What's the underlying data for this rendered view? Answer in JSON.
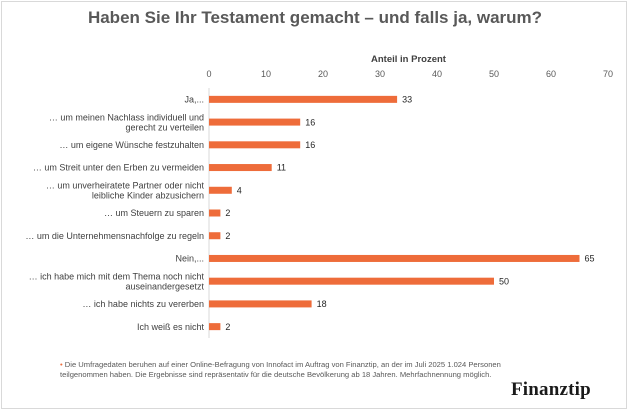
{
  "chart_data": {
    "type": "bar",
    "orientation": "horizontal",
    "title": "Haben Sie Ihr Testament gemacht – und falls ja, warum?",
    "xlabel": "Anteil in Prozent",
    "ylabel": "",
    "xlim": [
      0,
      70
    ],
    "xticks": [
      0,
      10,
      20,
      30,
      40,
      50,
      60,
      70
    ],
    "grid": false,
    "bar_color": "#ee6c3a",
    "categories": [
      [
        "Ja,..."
      ],
      [
        "… um meinen Nachlass individuell und",
        "gerecht zu verteilen"
      ],
      [
        "… um eigene Wünsche festzuhalten"
      ],
      [
        "… um Streit unter den Erben zu vermeiden"
      ],
      [
        "… um unverheiratete Partner oder nicht",
        "leibliche Kinder abzusichern"
      ],
      [
        "… um Steuern zu sparen"
      ],
      [
        "… um die Unternehmensnachfolge zu regeln"
      ],
      [
        "Nein,..."
      ],
      [
        "… ich habe mich mit dem Thema noch nicht",
        "auseinandergesetzt"
      ],
      [
        "… ich habe nichts zu vererben"
      ],
      [
        "Ich weiß es nicht"
      ]
    ],
    "values": [
      33,
      16,
      16,
      11,
      4,
      2,
      2,
      65,
      50,
      18,
      2
    ]
  },
  "footnote": {
    "bullet": "•",
    "text": "Die Umfragedaten beruhen auf einer Online-Befragung von Innofact im Auftrag von Finanztip, an der im Juli 2025 1.024 Personen teilgenommen haben. Die Ergebnisse sind repräsentativ für die deutsche Bevölkerung ab 18 Jahren. Mehrfachnennung möglich."
  },
  "brand": "Finanztip"
}
